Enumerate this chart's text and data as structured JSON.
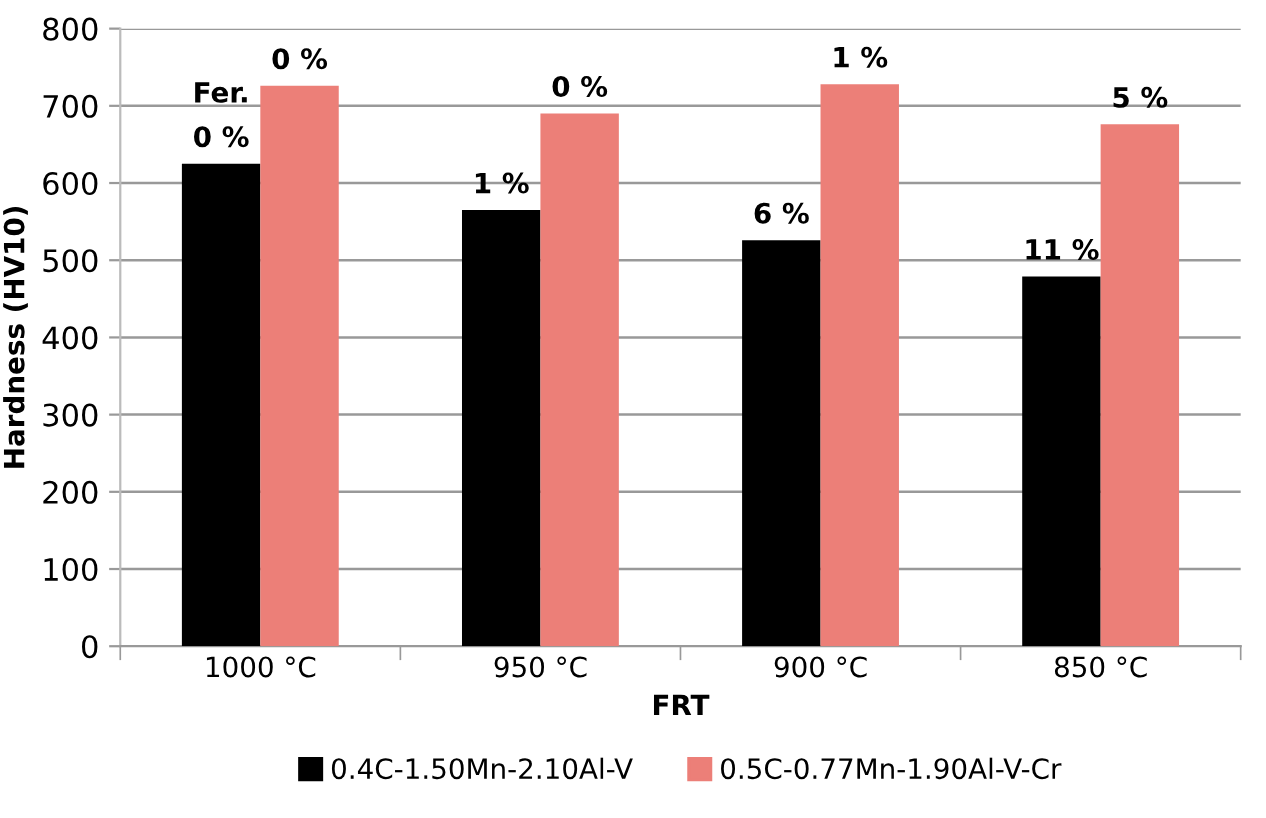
{
  "chart_data": {
    "type": "bar",
    "xlabel": "FRT",
    "ylabel": "Hardness (HV10)",
    "categories": [
      "1000 °C",
      "950 °C",
      "900 °C",
      "850 °C"
    ],
    "series": [
      {
        "name": "0.4C-1.50Mn-2.10Al-V",
        "color": "#000000",
        "values": [
          625,
          565,
          526,
          479
        ]
      },
      {
        "name": "0.5C-0.77Mn-1.90Al-V-Cr",
        "color": "#ec7f78",
        "values": [
          726,
          690,
          728,
          676
        ]
      }
    ],
    "annotations": [
      {
        "text": "0 %",
        "x": "1000 °C",
        "y": 625
      },
      {
        "text": "Fer.",
        "x": "1000 °C",
        "y": 625
      },
      {
        "text": "1 %",
        "x": "950 °C",
        "y": 565
      },
      {
        "text": "6 %",
        "x": "900 °C",
        "y": 526
      },
      {
        "text": "11 %",
        "x": "850 °C",
        "y": 479
      },
      {
        "text": "0 %",
        "x": "1000 °C",
        "y": 726
      },
      {
        "text": "0 %",
        "x": "950 °C",
        "y": 690
      },
      {
        "text": "1 %",
        "x": "900 °C",
        "y": 728
      },
      {
        "text": "5 %",
        "x": "850 °C",
        "y": 676
      }
    ],
    "ylim": [
      0,
      800
    ],
    "yticks": [
      0,
      100,
      200,
      300,
      400,
      500,
      600,
      700,
      800
    ],
    "grid": "y",
    "legend": "bottom"
  }
}
